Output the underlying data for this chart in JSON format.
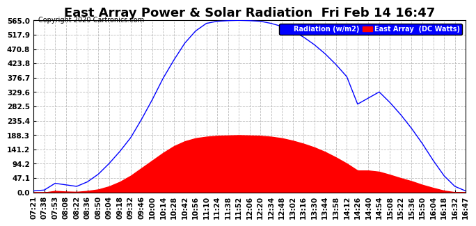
{
  "title": "East Array Power & Solar Radiation  Fri Feb 14 16:47",
  "copyright": "Copyright 2020 Cartronics.com",
  "legend_labels": [
    "Radiation (w/m2)",
    "East Array  (DC Watts)"
  ],
  "legend_colors": [
    "blue",
    "red"
  ],
  "y_ticks": [
    0.0,
    47.1,
    94.2,
    141.2,
    188.3,
    235.4,
    282.5,
    329.6,
    376.7,
    423.8,
    470.8,
    517.9,
    565.0
  ],
  "x_ticks": [
    "07:21",
    "07:38",
    "07:53",
    "08:08",
    "08:22",
    "08:36",
    "08:50",
    "09:04",
    "09:18",
    "09:32",
    "09:46",
    "10:00",
    "10:14",
    "10:28",
    "10:42",
    "10:56",
    "11:10",
    "11:24",
    "11:38",
    "11:52",
    "12:06",
    "12:20",
    "12:34",
    "12:48",
    "13:02",
    "13:16",
    "13:30",
    "13:44",
    "13:58",
    "14:12",
    "14:26",
    "14:40",
    "14:54",
    "15:08",
    "15:22",
    "15:36",
    "15:50",
    "16:04",
    "16:18",
    "16:32",
    "16:47"
  ],
  "ylim": [
    0.0,
    565.0
  ],
  "background_color": "#ffffff",
  "plot_bg_color": "#ffffff",
  "grid_color": "#bbbbbb",
  "radiation_color": "blue",
  "array_color": "red",
  "title_fontsize": 13,
  "tick_fontsize": 7.5,
  "rad_curve": [
    5,
    8,
    30,
    25,
    20,
    35,
    60,
    95,
    135,
    180,
    240,
    305,
    375,
    435,
    490,
    530,
    555,
    562,
    564,
    565,
    564,
    562,
    555,
    545,
    530,
    510,
    485,
    455,
    420,
    380,
    290,
    310,
    330,
    295,
    255,
    210,
    160,
    105,
    55,
    20,
    5
  ],
  "arr_curve": [
    0,
    0,
    5,
    3,
    2,
    5,
    10,
    20,
    35,
    55,
    80,
    105,
    130,
    152,
    168,
    178,
    183,
    186,
    187,
    188,
    187,
    186,
    183,
    178,
    170,
    160,
    148,
    133,
    115,
    95,
    72,
    72,
    68,
    58,
    47,
    37,
    25,
    15,
    6,
    1,
    0
  ]
}
